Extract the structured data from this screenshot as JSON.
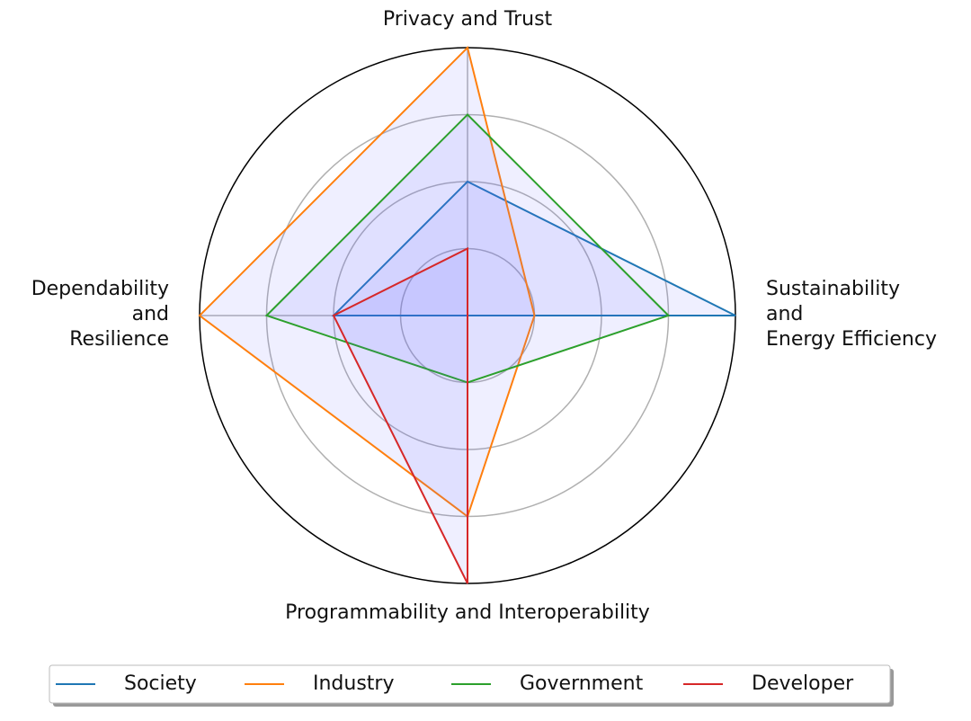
{
  "chart_data": {
    "type": "radar",
    "categories": [
      "Privacy and Trust",
      "Sustainability\nand\nEnergy Efficiency",
      "Programmability and Interoperability",
      "Dependability\nand\nResilience"
    ],
    "series": [
      {
        "name": "Society",
        "color": "#1f77b4",
        "values": [
          2,
          4,
          0,
          2
        ]
      },
      {
        "name": "Industry",
        "color": "#ff7f0e",
        "values": [
          4,
          1,
          3,
          4
        ]
      },
      {
        "name": "Government",
        "color": "#2ca02c",
        "values": [
          3,
          3,
          1,
          3
        ]
      },
      {
        "name": "Developer",
        "color": "#d62728",
        "values": [
          1,
          0,
          4,
          2
        ]
      }
    ],
    "fill_color": "#6666ff",
    "rlim": [
      0,
      4
    ],
    "rticks": [
      1,
      2,
      3
    ],
    "grid": true,
    "legend": "bottom"
  }
}
